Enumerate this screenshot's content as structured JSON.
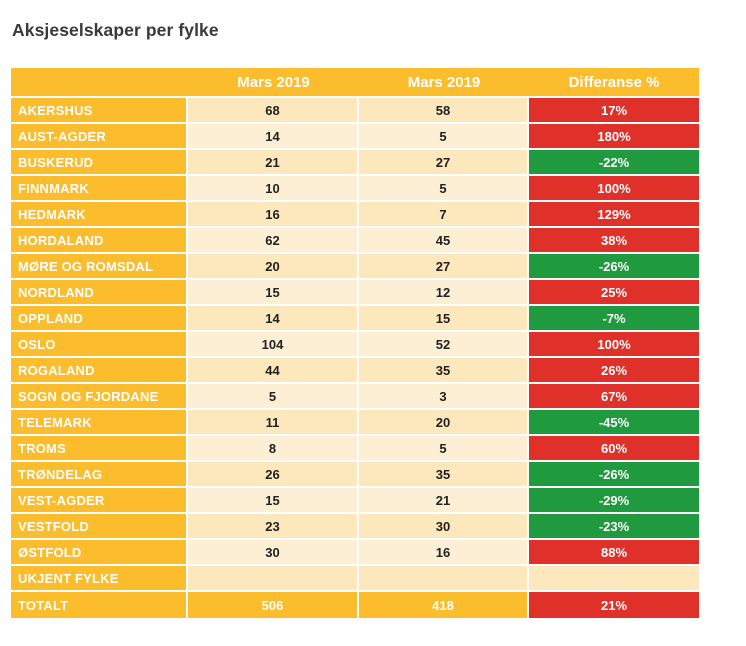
{
  "title": "Aksjeselskaper per fylke",
  "colors": {
    "header_orange": "#fbbd2c",
    "cell_light": "#fde7bc",
    "increase_red": "#e0302a",
    "decrease_green": "#1f9a3f"
  },
  "table": {
    "headers": [
      "",
      "Mars 2019",
      "Mars 2019",
      "Differanse %"
    ],
    "rows": [
      {
        "name": "AKERSHUS",
        "a": "68",
        "b": "58",
        "diff": "17%",
        "dir": "up"
      },
      {
        "name": "AUST-AGDER",
        "a": "14",
        "b": "5",
        "diff": "180%",
        "dir": "up"
      },
      {
        "name": "BUSKERUD",
        "a": "21",
        "b": "27",
        "diff": "-22%",
        "dir": "down"
      },
      {
        "name": "FINNMARK",
        "a": "10",
        "b": "5",
        "diff": "100%",
        "dir": "up"
      },
      {
        "name": "HEDMARK",
        "a": "16",
        "b": "7",
        "diff": "129%",
        "dir": "up"
      },
      {
        "name": "HORDALAND",
        "a": "62",
        "b": "45",
        "diff": "38%",
        "dir": "up"
      },
      {
        "name": "MØRE OG ROMSDAL",
        "a": "20",
        "b": "27",
        "diff": "-26%",
        "dir": "down"
      },
      {
        "name": "NORDLAND",
        "a": "15",
        "b": "12",
        "diff": "25%",
        "dir": "up"
      },
      {
        "name": "OPPLAND",
        "a": "14",
        "b": "15",
        "diff": "-7%",
        "dir": "down"
      },
      {
        "name": "OSLO",
        "a": "104",
        "b": "52",
        "diff": "100%",
        "dir": "up"
      },
      {
        "name": "ROGALAND",
        "a": "44",
        "b": "35",
        "diff": "26%",
        "dir": "up"
      },
      {
        "name": "SOGN OG FJORDANE",
        "a": "5",
        "b": "3",
        "diff": "67%",
        "dir": "up"
      },
      {
        "name": "TELEMARK",
        "a": "11",
        "b": "20",
        "diff": "-45%",
        "dir": "down"
      },
      {
        "name": "TROMS",
        "a": "8",
        "b": "5",
        "diff": "60%",
        "dir": "up"
      },
      {
        "name": "TRØNDELAG",
        "a": "26",
        "b": "35",
        "diff": "-26%",
        "dir": "down"
      },
      {
        "name": "VEST-AGDER",
        "a": "15",
        "b": "21",
        "diff": "-29%",
        "dir": "down"
      },
      {
        "name": "VESTFOLD",
        "a": "23",
        "b": "30",
        "diff": "-23%",
        "dir": "down"
      },
      {
        "name": "ØSTFOLD",
        "a": "30",
        "b": "16",
        "diff": "88%",
        "dir": "up"
      },
      {
        "name": "UKJENT FYLKE",
        "a": "",
        "b": "",
        "diff": "",
        "dir": "none"
      }
    ],
    "total": {
      "name": "TOTALT",
      "a": "506",
      "b": "418",
      "diff": "21%",
      "dir": "up"
    }
  }
}
